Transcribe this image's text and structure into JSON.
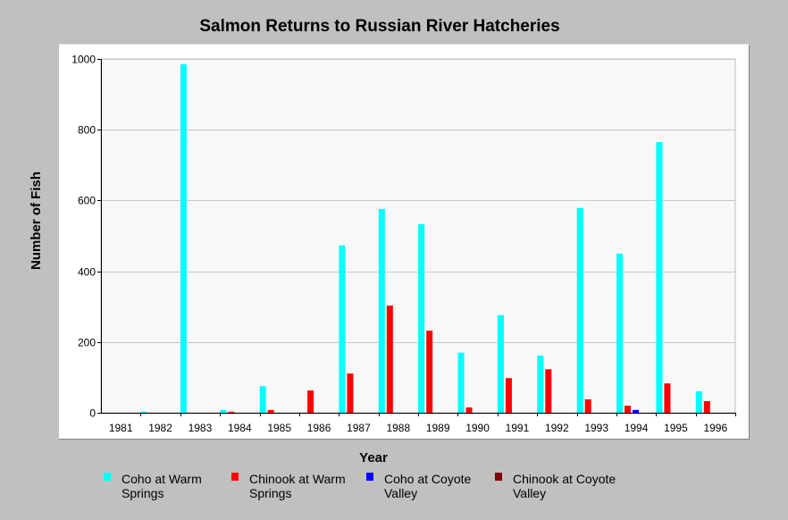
{
  "chart_data": {
    "type": "bar",
    "title": "Salmon Returns to Russian River Hatcheries",
    "xlabel": "Year",
    "ylabel": "Number of Fish",
    "ylim": [
      0,
      1000
    ],
    "yticks": [
      0,
      200,
      400,
      600,
      800,
      1000
    ],
    "grid": true,
    "legend_position": "bottom",
    "categories": [
      "1981",
      "1982",
      "1983",
      "1984",
      "1985",
      "1986",
      "1987",
      "1988",
      "1989",
      "1990",
      "1991",
      "1992",
      "1993",
      "1994",
      "1995",
      "1996"
    ],
    "series": [
      {
        "name": "Coho at Warm Springs",
        "color": "#00ffff",
        "values": [
          0,
          3,
          985,
          8,
          75,
          0,
          473,
          576,
          533,
          170,
          276,
          162,
          579,
          450,
          765,
          61
        ]
      },
      {
        "name": "Chinook at Warm Springs",
        "color": "#ff0000",
        "values": [
          0,
          0,
          0,
          3,
          8,
          63,
          111,
          303,
          232,
          15,
          98,
          123,
          38,
          20,
          83,
          33
        ]
      },
      {
        "name": "Coho at Coyote Valley",
        "color": "#0000ff",
        "values": [
          0,
          0,
          0,
          0,
          0,
          0,
          0,
          0,
          0,
          0,
          0,
          0,
          0,
          8,
          0,
          0
        ]
      },
      {
        "name": "Chinook at Coyote Valley",
        "color": "#800000",
        "values": [
          0,
          0,
          0,
          0,
          0,
          0,
          0,
          0,
          0,
          0,
          0,
          0,
          0,
          0,
          0,
          0
        ]
      }
    ]
  }
}
